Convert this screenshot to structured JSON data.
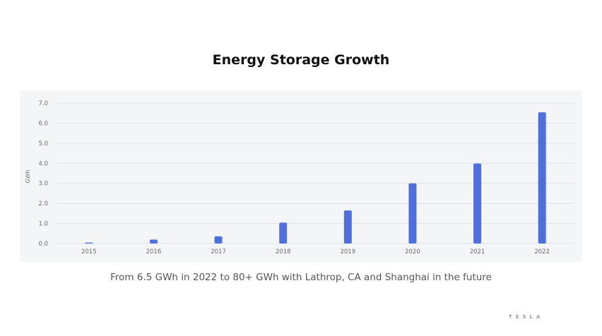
{
  "title": "Energy Storage Growth",
  "caption": "From 6.5 GWh in 2022 to 80+ GWh with Lathrop, CA and Shanghai in the future",
  "logo_text": "TESLA",
  "chart_data": {
    "type": "bar",
    "title": "Energy Storage Growth",
    "xlabel": "",
    "ylabel": "GWh",
    "categories": [
      "2015",
      "2016",
      "2017",
      "2018",
      "2019",
      "2020",
      "2021",
      "2022"
    ],
    "values": [
      0.05,
      0.2,
      0.36,
      1.04,
      1.65,
      3.0,
      3.99,
      6.54
    ],
    "ylim": [
      0,
      7
    ],
    "yticks": [
      "0.0",
      "1.0",
      "2.0",
      "3.0",
      "4.0",
      "5.0",
      "6.0",
      "7.0"
    ],
    "grid": true,
    "bar_color": "#4f6fdb",
    "grid_color": "#dde2e5"
  }
}
